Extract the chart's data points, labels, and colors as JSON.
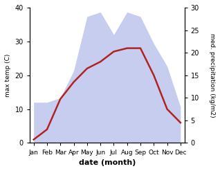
{
  "months": [
    "Jan",
    "Feb",
    "Mar",
    "Apr",
    "May",
    "Jun",
    "Jul",
    "Aug",
    "Sep",
    "Oct",
    "Nov",
    "Dec"
  ],
  "temp": [
    1,
    4,
    13,
    18,
    22,
    24,
    27,
    28,
    28,
    20,
    10,
    6
  ],
  "precip": [
    9,
    9,
    10,
    16,
    28,
    29,
    24,
    29,
    28,
    22,
    17,
    8
  ],
  "temp_color": "#b22222",
  "precip_color_fill": "#b0b8e8",
  "xlabel": "date (month)",
  "ylabel_left": "max temp (C)",
  "ylabel_right": "med. precipitation (kg/m2)",
  "ylim_left": [
    0,
    40
  ],
  "ylim_right": [
    0,
    30
  ],
  "bg_color": "#ffffff",
  "right_yticks": [
    0,
    5,
    10,
    15,
    20,
    25,
    30
  ],
  "left_yticks": [
    0,
    10,
    20,
    30,
    40
  ]
}
